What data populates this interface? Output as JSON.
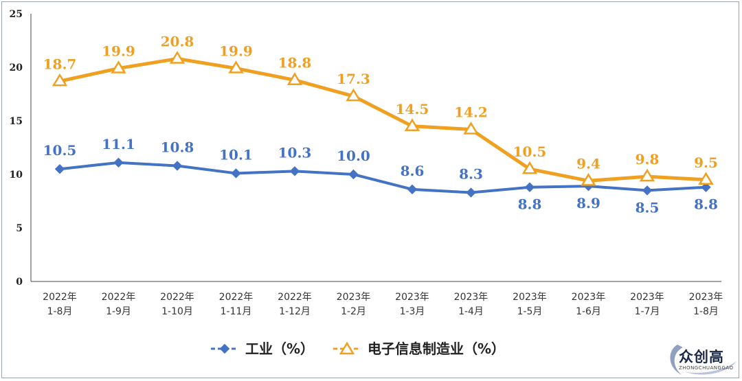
{
  "chart_data": {
    "type": "line",
    "title": "",
    "xlabel": "",
    "ylabel": "",
    "ylim": [
      0,
      25
    ],
    "yticks": [
      0,
      5,
      10,
      15,
      20,
      25
    ],
    "grid": false,
    "legend_position": "bottom-center",
    "categories": [
      [
        "2022年",
        "1-8月"
      ],
      [
        "2022年",
        "1-9月"
      ],
      [
        "2022年",
        "1-10月"
      ],
      [
        "2022年",
        "1-11月"
      ],
      [
        "2022年",
        "1-12月"
      ],
      [
        "2023年",
        "1-2月"
      ],
      [
        "2023年",
        "1-3月"
      ],
      [
        "2023年",
        "1-4月"
      ],
      [
        "2023年",
        "1-5月"
      ],
      [
        "2023年",
        "1-6月"
      ],
      [
        "2023年",
        "1-7月"
      ],
      [
        "2023年",
        "1-8月"
      ]
    ],
    "series": [
      {
        "name": "工业（%）",
        "color": "#4472c4",
        "marker": "diamond",
        "values": [
          10.5,
          11.1,
          10.8,
          10.1,
          10.3,
          10.0,
          8.6,
          8.3,
          8.8,
          8.9,
          8.5,
          8.8
        ],
        "labels": [
          "10.5",
          "11.1",
          "10.8",
          "10.1",
          "10.3",
          "10.0",
          "8.6",
          "8.3",
          "8.8",
          "8.9",
          "8.5",
          "8.8"
        ],
        "label_positions": [
          "above",
          "above",
          "above",
          "above",
          "above",
          "above",
          "above",
          "above",
          "below",
          "below",
          "below",
          "below"
        ]
      },
      {
        "name": "电子信息制造业（%）",
        "color": "#f0a020",
        "marker": "triangle",
        "values": [
          18.7,
          19.9,
          20.8,
          19.9,
          18.8,
          17.3,
          14.5,
          14.2,
          10.5,
          9.4,
          9.8,
          9.5
        ],
        "labels": [
          "18.7",
          "19.9",
          "20.8",
          "19.9",
          "18.8",
          "17.3",
          "14.5",
          "14.2",
          "10.5",
          "9.4",
          "9.8",
          "9.5"
        ],
        "label_positions": [
          "above",
          "above",
          "above",
          "above",
          "above",
          "above",
          "above",
          "above",
          "above",
          "above",
          "above",
          "above"
        ]
      }
    ]
  },
  "watermark": {
    "text": "众创高",
    "sub": "ZHONGCHUANGGAO"
  }
}
